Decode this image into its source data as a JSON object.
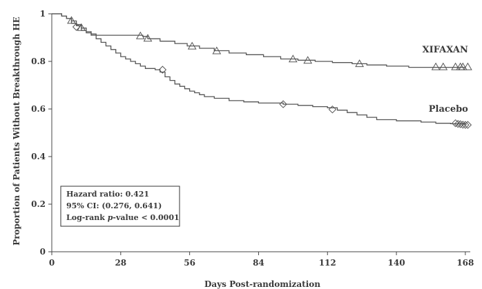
{
  "chart_data": {
    "type": "line",
    "chart_kind": "kaplan-meier step curve",
    "xlabel": "Days Post-randomization",
    "ylabel": "Proportion of Patients Without Breakthrough HE",
    "xlim": [
      0,
      170
    ],
    "ylim": [
      0,
      1
    ],
    "x_ticks": [
      0,
      28,
      56,
      84,
      112,
      140,
      168
    ],
    "y_ticks": [
      {
        "value": 0,
        "label": "0"
      },
      {
        "value": 0.2,
        "label": "0.2"
      },
      {
        "value": 0.4,
        "label": "0.4"
      },
      {
        "value": 0.6,
        "label": "0.6"
      },
      {
        "value": 0.8,
        "label": "0.8"
      },
      {
        "value": 1,
        "label": "1"
      }
    ],
    "grid": false,
    "series": [
      {
        "name": "XIFAXAN",
        "marker": "triangle",
        "color": "#555555",
        "steps": [
          [
            0,
            1
          ],
          [
            4,
            0.99
          ],
          [
            6,
            0.98
          ],
          [
            8,
            0.97
          ],
          [
            10,
            0.955
          ],
          [
            12,
            0.94
          ],
          [
            14,
            0.925
          ],
          [
            16,
            0.915
          ],
          [
            18,
            0.91
          ],
          [
            37,
            0.905
          ],
          [
            39,
            0.895
          ],
          [
            44,
            0.885
          ],
          [
            50,
            0.875
          ],
          [
            55,
            0.865
          ],
          [
            60,
            0.855
          ],
          [
            66,
            0.845
          ],
          [
            72,
            0.835
          ],
          [
            79,
            0.828
          ],
          [
            86,
            0.82
          ],
          [
            93,
            0.81
          ],
          [
            100,
            0.805
          ],
          [
            107,
            0.8
          ],
          [
            114,
            0.795
          ],
          [
            122,
            0.79
          ],
          [
            128,
            0.785
          ],
          [
            136,
            0.78
          ],
          [
            145,
            0.775
          ],
          [
            168,
            0.775
          ]
        ],
        "censored": [
          [
            8,
            0.97
          ],
          [
            12,
            0.94
          ],
          [
            36,
            0.905
          ],
          [
            39,
            0.895
          ],
          [
            57,
            0.862
          ],
          [
            67,
            0.842
          ],
          [
            98,
            0.808
          ],
          [
            104,
            0.802
          ],
          [
            125,
            0.788
          ],
          [
            156,
            0.775
          ],
          [
            159,
            0.775
          ],
          [
            164,
            0.775
          ],
          [
            166,
            0.775
          ],
          [
            167,
            0.775
          ],
          [
            169,
            0.775
          ]
        ]
      },
      {
        "name": "Placebo",
        "marker": "diamond",
        "color": "#555555",
        "steps": [
          [
            0,
            1
          ],
          [
            4,
            0.99
          ],
          [
            6,
            0.98
          ],
          [
            8,
            0.96
          ],
          [
            10,
            0.95
          ],
          [
            12,
            0.93
          ],
          [
            14,
            0.92
          ],
          [
            16,
            0.91
          ],
          [
            18,
            0.895
          ],
          [
            20,
            0.88
          ],
          [
            22,
            0.865
          ],
          [
            24,
            0.85
          ],
          [
            26,
            0.835
          ],
          [
            28,
            0.82
          ],
          [
            30,
            0.81
          ],
          [
            32,
            0.8
          ],
          [
            34,
            0.79
          ],
          [
            36,
            0.78
          ],
          [
            38,
            0.77
          ],
          [
            42,
            0.765
          ],
          [
            44,
            0.755
          ],
          [
            46,
            0.735
          ],
          [
            48,
            0.72
          ],
          [
            50,
            0.705
          ],
          [
            52,
            0.695
          ],
          [
            54,
            0.685
          ],
          [
            56,
            0.675
          ],
          [
            58,
            0.668
          ],
          [
            60,
            0.66
          ],
          [
            62,
            0.652
          ],
          [
            66,
            0.645
          ],
          [
            72,
            0.635
          ],
          [
            78,
            0.63
          ],
          [
            84,
            0.625
          ],
          [
            94,
            0.62
          ],
          [
            100,
            0.615
          ],
          [
            106,
            0.61
          ],
          [
            112,
            0.605
          ],
          [
            116,
            0.595
          ],
          [
            120,
            0.585
          ],
          [
            124,
            0.575
          ],
          [
            128,
            0.565
          ],
          [
            132,
            0.555
          ],
          [
            140,
            0.55
          ],
          [
            150,
            0.545
          ],
          [
            156,
            0.54
          ],
          [
            162,
            0.538
          ],
          [
            168,
            0.535
          ]
        ],
        "censored": [
          [
            10,
            0.945
          ],
          [
            45,
            0.765
          ],
          [
            94,
            0.62
          ],
          [
            114,
            0.598
          ],
          [
            164,
            0.54
          ],
          [
            165,
            0.537
          ],
          [
            166,
            0.536
          ],
          [
            167,
            0.534
          ],
          [
            168,
            0.533
          ],
          [
            169,
            0.533
          ]
        ]
      }
    ],
    "series_labels": [
      {
        "series": "XIFAXAN",
        "text": "XIFAXAN",
        "x": 168,
        "y": 0.85
      },
      {
        "series": "Placebo",
        "text": "Placebo",
        "x": 168,
        "y": 0.6
      }
    ],
    "stats_box": {
      "hazard_ratio": "Hazard ratio: 0.421",
      "ci": "95% CI: (0.276, 0.641)",
      "logrank_prefix": "Log-rank ",
      "logrank_p": "p",
      "logrank_suffix": "-value < 0.0001"
    }
  }
}
